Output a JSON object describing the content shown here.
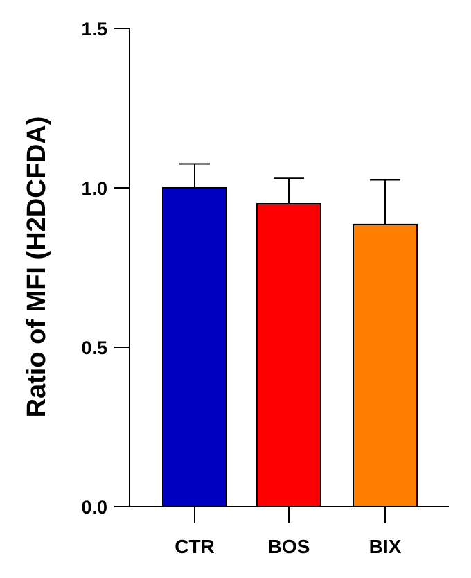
{
  "chart_data": {
    "type": "bar",
    "title": "",
    "xlabel": "",
    "ylabel": "Ratio of  MFI (H2DCFDA)",
    "ylim": [
      0,
      1.5
    ],
    "yticks": [
      "0.0",
      "0.5",
      "1.0",
      "1.5"
    ],
    "yticks_values": [
      0,
      0.5,
      1.0,
      1.5
    ],
    "categories": [
      "CTR",
      "BOS",
      "BIX"
    ],
    "values": [
      1.0,
      0.95,
      0.885
    ],
    "error_upper": [
      0.075,
      0.08,
      0.14
    ],
    "colors": [
      "#0000c0",
      "#ff0000",
      "#ff8000"
    ],
    "grid": false,
    "legend": "none"
  }
}
